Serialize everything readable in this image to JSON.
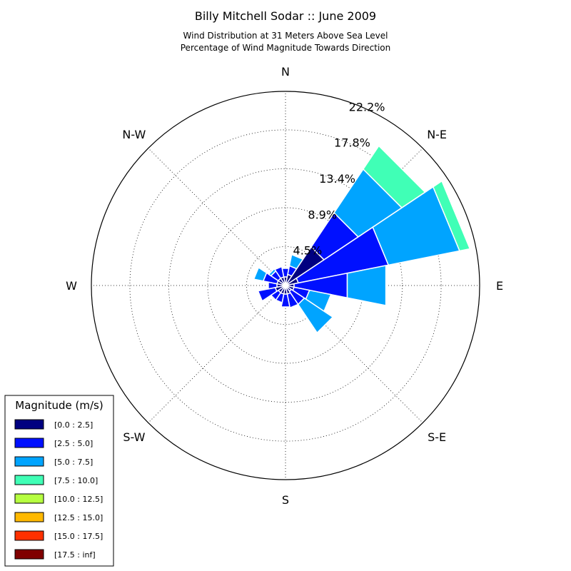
{
  "chart_data": {
    "type": "windrose",
    "title": "Billy Mitchell Sodar :: June 2009",
    "subtitle_lines": [
      "Wind Distribution at 31 Meters Above Sea Level",
      "Percentage of Wind Magnitude Towards Direction"
    ],
    "directions": [
      "E",
      "N-E",
      "N",
      "N-W",
      "W",
      "S-W",
      "S",
      "S-E"
    ],
    "ring_labels": [
      "4.5%",
      "8.9%",
      "13.4%",
      "17.8%",
      "22.2%"
    ],
    "rings": [
      4.45,
      8.9,
      13.35,
      17.8,
      22.2
    ],
    "rmax": 22.2,
    "grid": true,
    "bin_count": 16,
    "bin_width_deg": 22.5,
    "legend": {
      "title": "Magnitude (m/s)",
      "placement": "lower-left",
      "items": [
        {
          "label": "[0.0 : 2.5]",
          "color": "#000080"
        },
        {
          "label": "[2.5 : 5.0]",
          "color": "#0010ff"
        },
        {
          "label": "[5.0 : 7.5]",
          "color": "#00a4ff"
        },
        {
          "label": "[7.5 : 10.0]",
          "color": "#40ffb6"
        },
        {
          "label": "[10.0 : 12.5]",
          "color": "#b6ff40"
        },
        {
          "label": "[12.5 : 15.0]",
          "color": "#ffb900"
        },
        {
          "label": "[15.0 : 17.5]",
          "color": "#ff3000"
        },
        {
          "label": "[17.5 : inf]",
          "color": "#800000"
        }
      ]
    },
    "sectors": [
      {
        "bearing_deg": 0,
        "cumulative": [
          1.0,
          2.0
        ]
      },
      {
        "bearing_deg": 22.5,
        "cumulative": [
          1.3,
          2.3,
          3.6
        ]
      },
      {
        "bearing_deg": 45,
        "cumulative": [
          5.3,
          10.0,
          16.0,
          19.2
        ]
      },
      {
        "bearing_deg": 67.5,
        "cumulative": [
          1.5,
          12.0,
          20.3,
          21.5
        ]
      },
      {
        "bearing_deg": 90,
        "cumulative": [
          1.0,
          7.2,
          11.7
        ]
      },
      {
        "bearing_deg": 112.5,
        "cumulative": [
          1.0,
          2.8,
          5.3
        ]
      },
      {
        "bearing_deg": 135,
        "cumulative": [
          0.8,
          2.6,
          6.5
        ]
      },
      {
        "bearing_deg": 157.5,
        "cumulative": [
          1.0,
          2.6
        ]
      },
      {
        "bearing_deg": 180,
        "cumulative": [
          1.0,
          2.5
        ]
      },
      {
        "bearing_deg": 202.5,
        "cumulative": [
          1.0,
          2.0
        ]
      },
      {
        "bearing_deg": 225,
        "cumulative": [
          1.0,
          2.0
        ]
      },
      {
        "bearing_deg": 247.5,
        "cumulative": [
          1.2,
          3.2
        ]
      },
      {
        "bearing_deg": 270,
        "cumulative": [
          1.0,
          2.0
        ]
      },
      {
        "bearing_deg": 292.5,
        "cumulative": [
          1.0,
          2.6,
          3.7
        ]
      },
      {
        "bearing_deg": 315,
        "cumulative": [
          1.0,
          2.0,
          2.3
        ]
      },
      {
        "bearing_deg": 337.5,
        "cumulative": [
          1.0,
          2.2
        ]
      }
    ]
  }
}
